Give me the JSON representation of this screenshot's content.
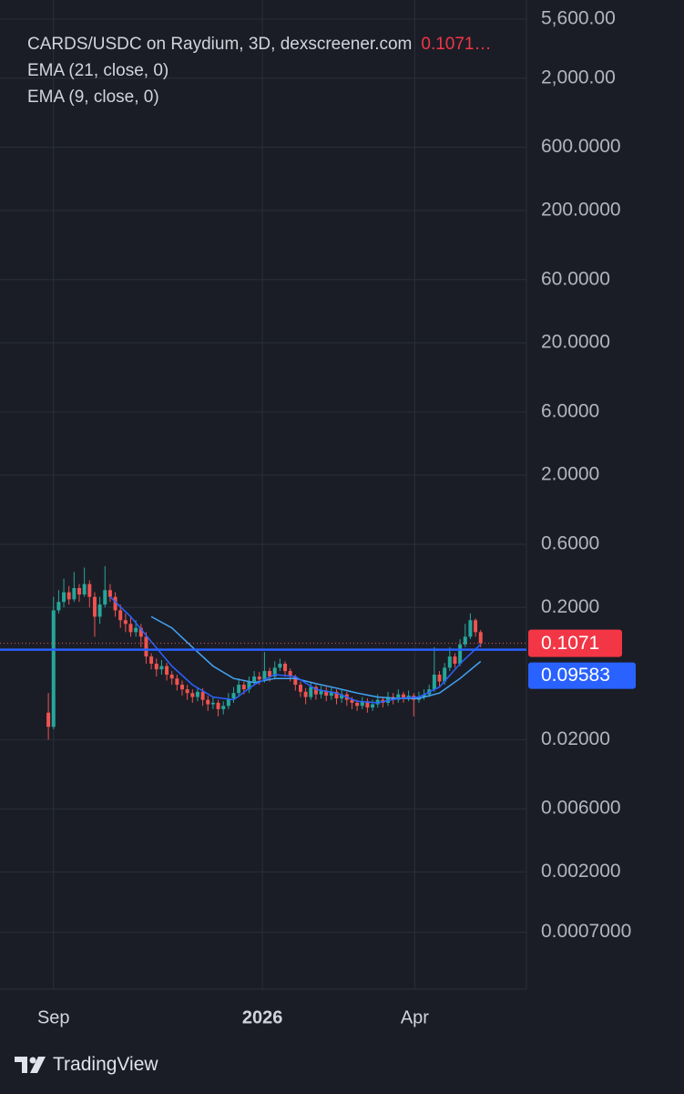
{
  "chart_data": {
    "type": "candlestick",
    "title": "CARDS/USDC on Raydium, 3D, dexscreener.com",
    "last_price_label": "0.1071…",
    "log_scale": true,
    "grid": true,
    "up_color": "#26a69a",
    "down_color": "#ef5350",
    "open": [
      0.032,
      0.025,
      0.19,
      0.22,
      0.26,
      0.23,
      0.28,
      0.25,
      0.3,
      0.24,
      0.17,
      0.21,
      0.27,
      0.24,
      0.19,
      0.16,
      0.15,
      0.13,
      0.14,
      0.12,
      0.085,
      0.075,
      0.068,
      0.072,
      0.062,
      0.058,
      0.052,
      0.048,
      0.045,
      0.042,
      0.046,
      0.04,
      0.037,
      0.038,
      0.034,
      0.036,
      0.041,
      0.045,
      0.052,
      0.048,
      0.055,
      0.06,
      0.057,
      0.066,
      0.06,
      0.07,
      0.075,
      0.066,
      0.06,
      0.052,
      0.046,
      0.042,
      0.05,
      0.044,
      0.047,
      0.043,
      0.046,
      0.041,
      0.044,
      0.04,
      0.038,
      0.036,
      0.039,
      0.035,
      0.037,
      0.04,
      0.038,
      0.042,
      0.04,
      0.044,
      0.041,
      0.043,
      0.04,
      0.042,
      0.044,
      0.048,
      0.062,
      0.055,
      0.07,
      0.085,
      0.075,
      0.105,
      0.12,
      0.16,
      0.13
    ],
    "high": [
      0.045,
      0.24,
      0.27,
      0.33,
      0.29,
      0.37,
      0.3,
      0.4,
      0.32,
      0.26,
      0.24,
      0.41,
      0.3,
      0.26,
      0.21,
      0.18,
      0.17,
      0.16,
      0.15,
      0.13,
      0.09,
      0.082,
      0.08,
      0.076,
      0.066,
      0.062,
      0.056,
      0.052,
      0.048,
      0.05,
      0.049,
      0.043,
      0.042,
      0.04,
      0.039,
      0.045,
      0.05,
      0.058,
      0.055,
      0.06,
      0.066,
      0.065,
      0.092,
      0.07,
      0.078,
      0.082,
      0.078,
      0.069,
      0.062,
      0.055,
      0.049,
      0.055,
      0.052,
      0.051,
      0.05,
      0.05,
      0.048,
      0.048,
      0.046,
      0.042,
      0.04,
      0.042,
      0.041,
      0.04,
      0.044,
      0.042,
      0.046,
      0.045,
      0.048,
      0.046,
      0.047,
      0.045,
      0.046,
      0.048,
      0.052,
      0.1,
      0.066,
      0.076,
      0.1,
      0.09,
      0.115,
      0.15,
      0.18,
      0.165,
      0.135
    ],
    "low": [
      0.02,
      0.024,
      0.18,
      0.2,
      0.21,
      0.22,
      0.22,
      0.24,
      0.2,
      0.12,
      0.15,
      0.2,
      0.22,
      0.17,
      0.14,
      0.13,
      0.12,
      0.12,
      0.1,
      0.075,
      0.068,
      0.06,
      0.062,
      0.056,
      0.052,
      0.047,
      0.043,
      0.04,
      0.038,
      0.039,
      0.036,
      0.033,
      0.034,
      0.03,
      0.031,
      0.034,
      0.038,
      0.042,
      0.044,
      0.045,
      0.051,
      0.052,
      0.054,
      0.055,
      0.057,
      0.066,
      0.06,
      0.055,
      0.047,
      0.042,
      0.037,
      0.04,
      0.04,
      0.041,
      0.039,
      0.04,
      0.037,
      0.038,
      0.036,
      0.034,
      0.033,
      0.034,
      0.032,
      0.033,
      0.035,
      0.035,
      0.036,
      0.037,
      0.038,
      0.038,
      0.039,
      0.03,
      0.038,
      0.04,
      0.042,
      0.046,
      0.05,
      0.052,
      0.066,
      0.07,
      0.072,
      0.1,
      0.115,
      0.12,
      0.1
    ],
    "close": [
      0.025,
      0.19,
      0.22,
      0.26,
      0.23,
      0.28,
      0.25,
      0.3,
      0.24,
      0.17,
      0.21,
      0.27,
      0.24,
      0.19,
      0.16,
      0.15,
      0.13,
      0.14,
      0.12,
      0.085,
      0.075,
      0.068,
      0.072,
      0.062,
      0.058,
      0.052,
      0.048,
      0.045,
      0.042,
      0.046,
      0.04,
      0.037,
      0.038,
      0.034,
      0.036,
      0.041,
      0.045,
      0.052,
      0.048,
      0.055,
      0.06,
      0.057,
      0.066,
      0.06,
      0.07,
      0.075,
      0.066,
      0.06,
      0.052,
      0.046,
      0.042,
      0.05,
      0.044,
      0.047,
      0.043,
      0.046,
      0.041,
      0.044,
      0.04,
      0.038,
      0.036,
      0.039,
      0.035,
      0.037,
      0.04,
      0.038,
      0.042,
      0.04,
      0.044,
      0.041,
      0.043,
      0.04,
      0.042,
      0.044,
      0.048,
      0.062,
      0.055,
      0.07,
      0.085,
      0.075,
      0.105,
      0.12,
      0.16,
      0.13,
      0.1071
    ],
    "series": [
      {
        "name": "EMA (21, close, 0)",
        "color": "#42a5f5",
        "x": [
          20,
          24,
          28,
          32,
          36,
          40,
          44,
          48,
          52,
          56,
          60,
          64,
          68,
          72,
          76,
          80,
          84
        ],
        "values": [
          0.17,
          0.14,
          0.1,
          0.072,
          0.058,
          0.054,
          0.058,
          0.058,
          0.053,
          0.049,
          0.045,
          0.042,
          0.041,
          0.041,
          0.045,
          0.058,
          0.078
        ]
      },
      {
        "name": "EMA (9, close, 0)",
        "color": "#2962ff",
        "x": [
          12,
          16,
          20,
          24,
          28,
          32,
          36,
          40,
          44,
          48,
          52,
          56,
          60,
          64,
          68,
          72,
          76,
          80,
          84
        ],
        "values": [
          0.24,
          0.17,
          0.11,
          0.072,
          0.052,
          0.042,
          0.04,
          0.052,
          0.062,
          0.06,
          0.048,
          0.045,
          0.039,
          0.038,
          0.041,
          0.042,
          0.05,
          0.075,
          0.105
        ]
      }
    ],
    "reference_line": 0.09583,
    "reference_color": "#2962ff",
    "ylim": [
      0.00026,
      7800
    ],
    "yticks": [
      {
        "value": 5600,
        "label": "5,600.00"
      },
      {
        "value": 2000,
        "label": "2,000.00"
      },
      {
        "value": 600,
        "label": "600.0000"
      },
      {
        "value": 200,
        "label": "200.0000"
      },
      {
        "value": 60,
        "label": "60.0000"
      },
      {
        "value": 20,
        "label": "20.0000"
      },
      {
        "value": 6,
        "label": "6.0000"
      },
      {
        "value": 2,
        "label": "2.0000"
      },
      {
        "value": 0.6,
        "label": "0.6000"
      },
      {
        "value": 0.2,
        "label": "0.2000"
      },
      {
        "value": 0.02,
        "label": "0.02000"
      },
      {
        "value": 0.006,
        "label": "0.006000"
      },
      {
        "value": 0.002,
        "label": "0.002000"
      },
      {
        "value": 0.0007,
        "label": "0.0007000"
      }
    ],
    "xlim": [
      -9.4,
      92.9
    ],
    "xticks": [
      {
        "value": 1,
        "label": "Sep"
      },
      {
        "value": 41.6,
        "label": "2026"
      },
      {
        "value": 71.2,
        "label": "Apr"
      }
    ]
  },
  "footer": {
    "brand": "TradingView"
  }
}
